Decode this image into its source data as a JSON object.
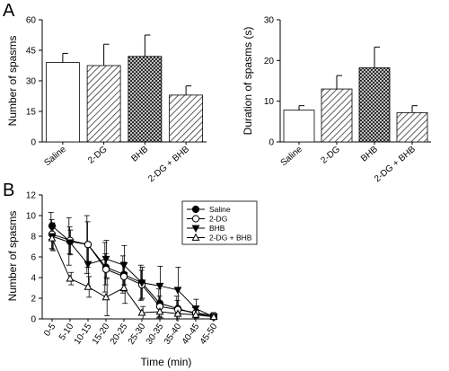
{
  "panels": {
    "a_letter": "A",
    "b_letter": "B"
  },
  "chart_data": [
    {
      "type": "bar",
      "categories": [
        "Saline",
        "2-DG",
        "BHB",
        "2-DG + BHB"
      ],
      "values": [
        39,
        37.5,
        42,
        23
      ],
      "errors": [
        4.5,
        10.5,
        10.5,
        4.5
      ],
      "fill_patterns": [
        "none",
        "diagonal",
        "crosshatch",
        "diagonal"
      ],
      "title": "",
      "xlabel": "",
      "ylabel": "Number of spasms",
      "ylim": [
        0,
        60
      ],
      "yticks": [
        0,
        15,
        30,
        45,
        60
      ],
      "grid": false
    },
    {
      "type": "bar",
      "categories": [
        "Saline",
        "2-DG",
        "BHB",
        "2-DG + BHB"
      ],
      "values": [
        7.8,
        13.0,
        18.2,
        7.2
      ],
      "errors": [
        1.1,
        3.3,
        5.1,
        1.7
      ],
      "fill_patterns": [
        "none",
        "diagonal",
        "crosshatch",
        "diagonal"
      ],
      "title": "",
      "xlabel": "",
      "ylabel": "Duration of spasms (s)",
      "ylim": [
        0,
        30
      ],
      "yticks": [
        0,
        10,
        20,
        30
      ],
      "grid": false
    },
    {
      "type": "line",
      "categories": [
        "0-5",
        "5-10",
        "10-15",
        "15-20",
        "20-25",
        "25-30",
        "30-35",
        "35-40",
        "40-45",
        "45-50"
      ],
      "series": [
        {
          "name": "Saline",
          "marker": "filled-circle",
          "values": [
            9.0,
            7.5,
            7.2,
            5.0,
            4.3,
            3.5,
            1.5,
            1.0,
            0.5,
            0.2
          ],
          "errors": [
            1.3,
            2.3,
            2.8,
            2.4,
            1.8,
            1.7,
            1.4,
            1.2,
            0.6,
            0.3
          ]
        },
        {
          "name": "2-DG",
          "marker": "open-circle",
          "values": [
            8.2,
            7.6,
            7.2,
            4.8,
            4.1,
            3.3,
            1.2,
            0.9,
            0.6,
            0.3
          ],
          "errors": [
            1.4,
            1.3,
            2.2,
            1.5,
            1.4,
            1.4,
            1.0,
            0.9,
            0.6,
            0.3
          ]
        },
        {
          "name": "BHB",
          "marker": "filled-triangle-down",
          "values": [
            8.0,
            7.4,
            5.3,
            5.8,
            5.2,
            3.5,
            3.2,
            2.8,
            1.0,
            0.2
          ],
          "errors": [
            1.3,
            1.2,
            2.1,
            1.8,
            1.9,
            1.5,
            1.9,
            2.2,
            0.9,
            0.3
          ]
        },
        {
          "name": "2-DG + BHB",
          "marker": "open-triangle-up",
          "values": [
            7.8,
            3.9,
            3.1,
            2.1,
            3.0,
            0.6,
            0.7,
            0.5,
            0.4,
            0.2
          ],
          "errors": [
            1.2,
            0.6,
            1.0,
            1.8,
            1.5,
            0.6,
            0.6,
            0.5,
            0.4,
            0.3
          ]
        }
      ],
      "title": "",
      "xlabel": "Time (min)",
      "ylabel": "Number of spasms",
      "ylim": [
        0,
        12
      ],
      "yticks": [
        0,
        2,
        4,
        6,
        8,
        10,
        12
      ],
      "legend": "top-right",
      "grid": false
    }
  ]
}
